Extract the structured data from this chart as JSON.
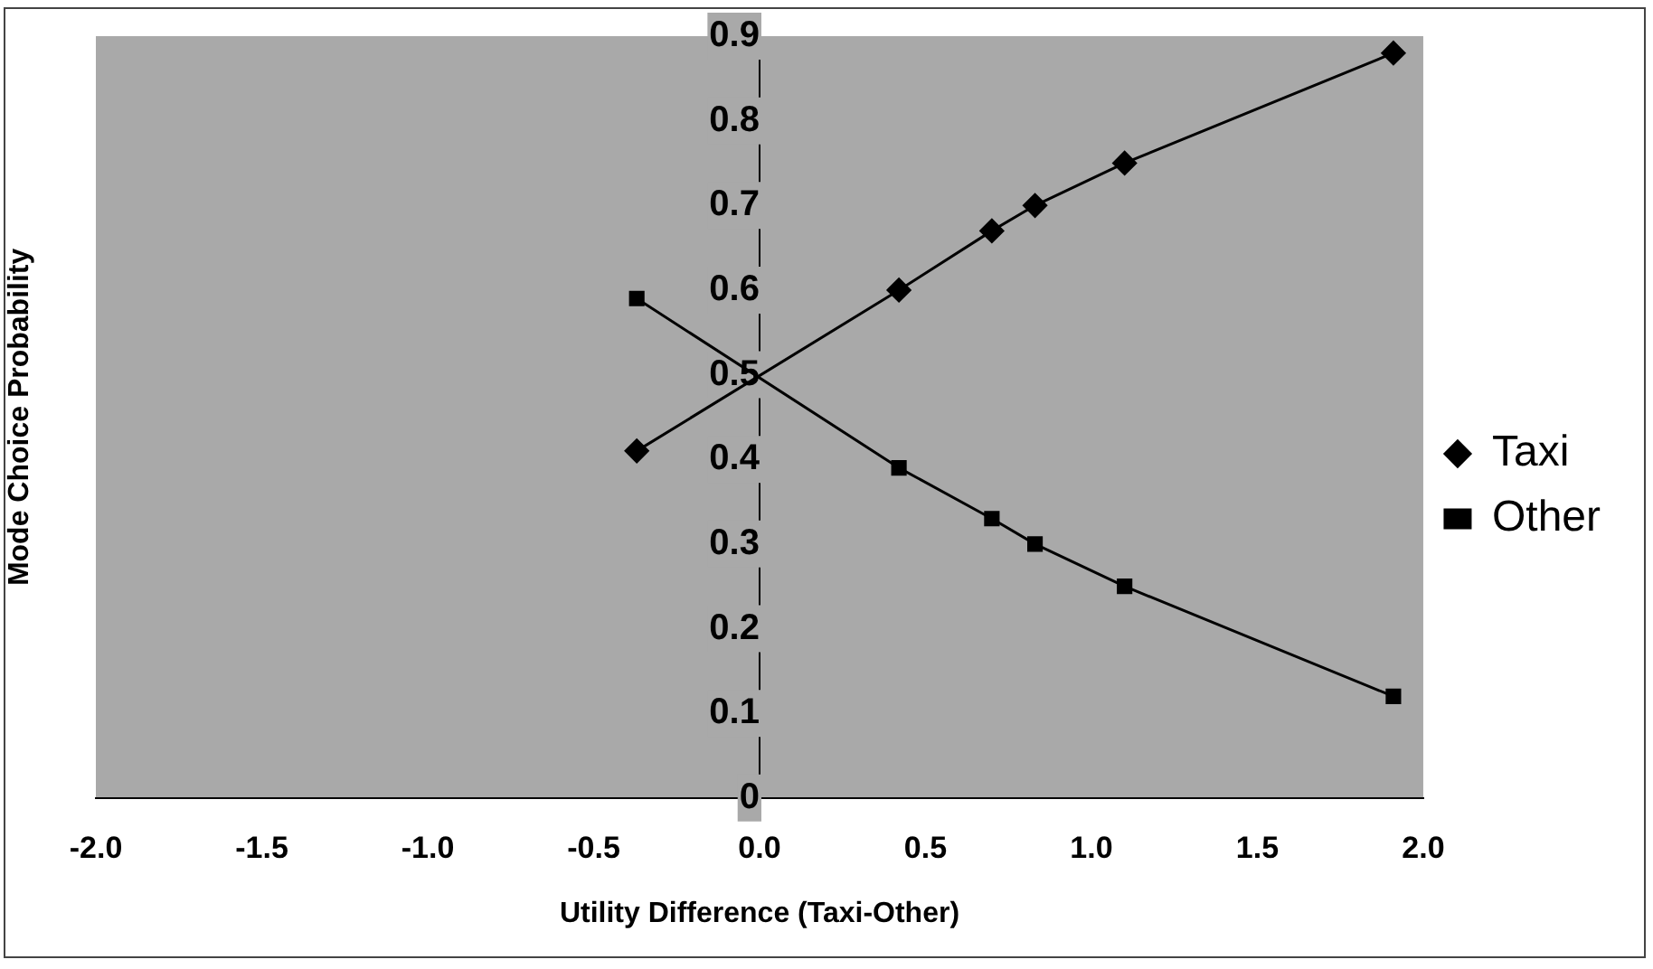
{
  "chart_data": {
    "type": "line",
    "xlabel": "Utility Difference (Taxi-Other)",
    "ylabel": "Mode Choice Probability",
    "x": [
      -0.37,
      0.42,
      0.7,
      0.83,
      1.1,
      1.91
    ],
    "series": [
      {
        "name": "Taxi",
        "color": "#000000",
        "marker": "diamond",
        "values": [
          0.41,
          0.6,
          0.67,
          0.7,
          0.75,
          0.88
        ]
      },
      {
        "name": "Other",
        "color": "#000000",
        "marker": "square",
        "values": [
          0.59,
          0.39,
          0.33,
          0.3,
          0.25,
          0.12
        ]
      }
    ],
    "xlim": [
      -2,
      2
    ],
    "xticks": [
      {
        "value": -2,
        "label": "-2.0"
      },
      {
        "value": -1.5,
        "label": "-1.5"
      },
      {
        "value": -1,
        "label": "-1.0"
      },
      {
        "value": -0.5,
        "label": "-0.5"
      },
      {
        "value": 0,
        "label": "0.0"
      },
      {
        "value": 0.5,
        "label": "0.5"
      },
      {
        "value": 1,
        "label": "1.0"
      },
      {
        "value": 1.5,
        "label": "1.5"
      },
      {
        "value": 2,
        "label": "2.0"
      }
    ],
    "ylim": [
      0,
      0.9
    ],
    "yticks": [
      0,
      0.1,
      0.2,
      0.3,
      0.4,
      0.5,
      0.6,
      0.7,
      0.8,
      0.9
    ],
    "grid": false,
    "legend": "right",
    "line_style": "solid"
  }
}
